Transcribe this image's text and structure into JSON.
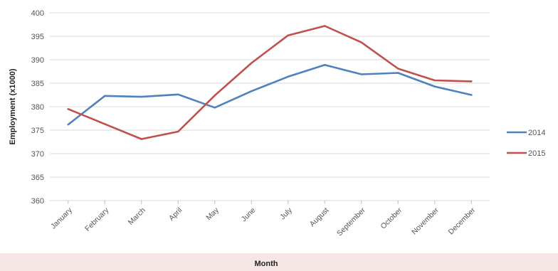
{
  "chart_data": {
    "type": "line",
    "xlabel": "Month",
    "ylabel": "Employment (x1000)",
    "ylim": [
      360,
      400
    ],
    "ytick_step": 5,
    "grid": true,
    "legend_position": "right",
    "categories": [
      "January",
      "February",
      "March",
      "April",
      "May",
      "June",
      "July",
      "August",
      "September",
      "October",
      "November",
      "December"
    ],
    "series": [
      {
        "name": "2014",
        "color": "#4f81bd",
        "values": [
          376.2,
          382.3,
          382.1,
          382.6,
          379.8,
          383.3,
          386.4,
          388.9,
          386.9,
          387.2,
          384.3,
          382.5
        ]
      },
      {
        "name": "2015",
        "color": "#c0504d",
        "values": [
          379.5,
          376.3,
          373.1,
          374.7,
          382.4,
          389.3,
          395.2,
          397.2,
          393.7,
          388.1,
          385.6,
          385.4
        ]
      }
    ]
  }
}
